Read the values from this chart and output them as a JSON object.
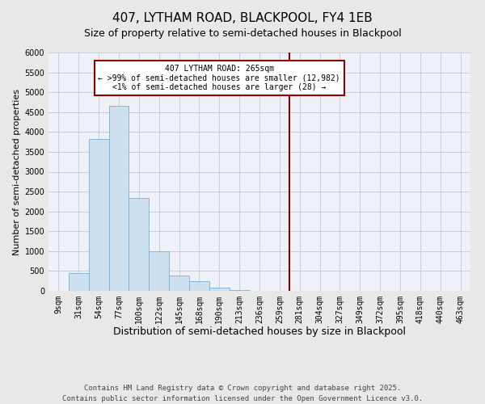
{
  "title": "407, LYTHAM ROAD, BLACKPOOL, FY4 1EB",
  "subtitle": "Size of property relative to semi-detached houses in Blackpool",
  "xlabel": "Distribution of semi-detached houses by size in Blackpool",
  "ylabel": "Number of semi-detached properties",
  "bar_labels": [
    "9sqm",
    "31sqm",
    "54sqm",
    "77sqm",
    "100sqm",
    "122sqm",
    "145sqm",
    "168sqm",
    "190sqm",
    "213sqm",
    "236sqm",
    "259sqm",
    "281sqm",
    "304sqm",
    "327sqm",
    "349sqm",
    "372sqm",
    "395sqm",
    "418sqm",
    "440sqm",
    "463sqm"
  ],
  "bar_values": [
    0,
    450,
    3820,
    4650,
    2330,
    1000,
    390,
    240,
    75,
    20,
    0,
    0,
    0,
    0,
    0,
    0,
    0,
    0,
    0,
    0,
    0
  ],
  "bar_color": "#cce0f0",
  "bar_edge_color": "#7bafd4",
  "ylim": [
    0,
    6000
  ],
  "yticks": [
    0,
    500,
    1000,
    1500,
    2000,
    2500,
    3000,
    3500,
    4000,
    4500,
    5000,
    5500,
    6000
  ],
  "vline_x_index": 11.5,
  "vline_color": "#8b0000",
  "annotation_title": "407 LYTHAM ROAD: 265sqm",
  "annotation_line1": "← >99% of semi-detached houses are smaller (12,982)",
  "annotation_line2": "<1% of semi-detached houses are larger (28) →",
  "annotation_box_color": "white",
  "annotation_box_edge": "#8b0000",
  "background_color": "#e8e8e8",
  "plot_bg_color": "#eef2f8",
  "grid_color": "#c8cdd8",
  "footer1": "Contains HM Land Registry data © Crown copyright and database right 2025.",
  "footer2": "Contains public sector information licensed under the Open Government Licence v3.0.",
  "title_fontsize": 11,
  "subtitle_fontsize": 9,
  "xlabel_fontsize": 9,
  "ylabel_fontsize": 8,
  "tick_fontsize": 7,
  "footer_fontsize": 6.5
}
